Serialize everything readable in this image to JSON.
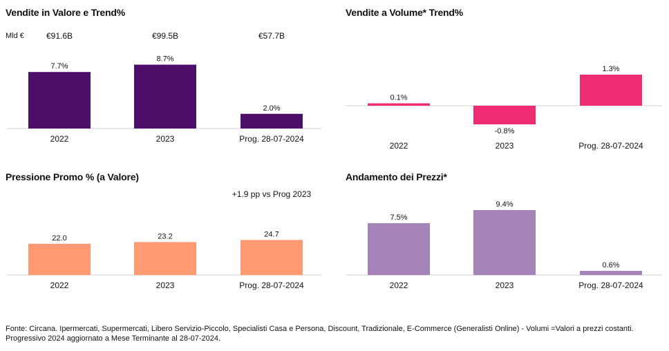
{
  "chart_data": [
    {
      "id": "vendite-valore",
      "type": "bar",
      "title": "Vendite in Valore e Trend%",
      "unit_label": "Mld €",
      "categories": [
        "2022",
        "2023",
        "Prog. 28-07-2024"
      ],
      "values": [
        7.7,
        8.7,
        2.0
      ],
      "value_labels": [
        "7.7%",
        "8.7%",
        "2.0%"
      ],
      "top_labels": [
        "€91.6B",
        "€99.5B",
        "€57.7B"
      ],
      "color": "#4e0f6b",
      "ylim": [
        0,
        9.6
      ]
    },
    {
      "id": "vendite-volume",
      "type": "bar",
      "title": "Vendite a Volume* Trend%",
      "categories": [
        "2022",
        "2023",
        "Prog. 28-07-2024"
      ],
      "values": [
        0.1,
        -0.8,
        1.3
      ],
      "value_labels": [
        "0.1%",
        "-0.8%",
        "1.3%"
      ],
      "color": "#ee2c74",
      "ylim": [
        -0.8,
        1.3
      ]
    },
    {
      "id": "pressione-promo",
      "type": "bar",
      "title": "Pressione Promo % (a Valore)",
      "categories": [
        "2022",
        "2023",
        "Prog. 28-07-2024"
      ],
      "values": [
        22.0,
        23.2,
        24.7
      ],
      "value_labels": [
        "22.0",
        "23.2",
        "24.7"
      ],
      "annotation": "+1.9 pp vs Prog 2023",
      "color": "#ff9a72",
      "ylim": [
        0,
        37
      ]
    },
    {
      "id": "andamento-prezzi",
      "type": "bar",
      "title": "Andamento dei Prezzi*",
      "categories": [
        "2022",
        "2023",
        "Prog. 28-07-2024"
      ],
      "values": [
        7.5,
        9.4,
        0.6
      ],
      "value_labels": [
        "7.5%",
        "9.4%",
        "0.6%"
      ],
      "color": "#a585b9",
      "ylim": [
        0,
        9.4
      ]
    }
  ],
  "footer": "Fonte: Circana. Ipermercati, Supermercati, Libero Servizio-Piccolo, Specialisti Casa e Persona, Discount, Tradizionale, E-Commerce (Generalisti Online) - Volumi =Valori a prezzi costanti. Progressivo 2024 aggiornato a Mese Terminante al 28-07-2024."
}
